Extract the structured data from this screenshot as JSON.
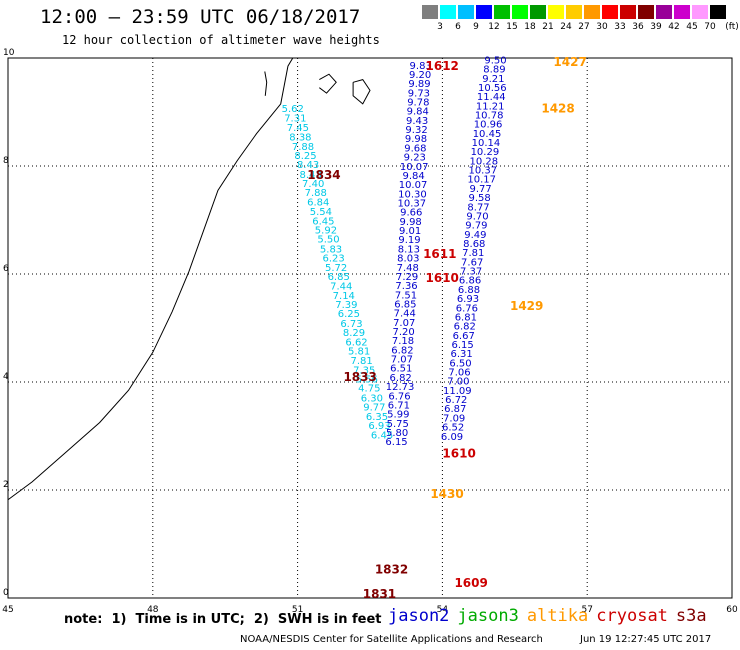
{
  "header": {
    "title": "12:00 – 23:59 UTC 06/18/2017",
    "subtitle": "12 hour collection of altimeter wave heights"
  },
  "legend": {
    "units": "(ft)",
    "bins": [
      {
        "label": "3",
        "color": "#7f7f7f"
      },
      {
        "label": "6",
        "color": "#00ffff"
      },
      {
        "label": "9",
        "color": "#00bfff"
      },
      {
        "label": "12",
        "color": "#0000ff"
      },
      {
        "label": "15",
        "color": "#00bf00"
      },
      {
        "label": "18",
        "color": "#00ff00"
      },
      {
        "label": "21",
        "color": "#009900"
      },
      {
        "label": "24",
        "color": "#ffff00"
      },
      {
        "label": "27",
        "color": "#ffcc00"
      },
      {
        "label": "30",
        "color": "#ff9900"
      },
      {
        "label": "33",
        "color": "#ff0000"
      },
      {
        "label": "36",
        "color": "#cc0000"
      },
      {
        "label": "39",
        "color": "#800000"
      },
      {
        "label": "42",
        "color": "#990099"
      },
      {
        "label": "45",
        "color": "#cc00cc"
      },
      {
        "label": "70",
        "color": "#ff99ff"
      },
      {
        "label": "",
        "color": "#000000"
      }
    ]
  },
  "map": {
    "lon_range": [
      45,
      60
    ],
    "lat_range": [
      0,
      10
    ],
    "lon_ticks": [
      "45",
      "48",
      "51",
      "54",
      "57",
      "60"
    ],
    "lat_ticks": [
      "0",
      "2",
      "4",
      "6",
      "8",
      "10"
    ],
    "colors": {
      "jason2": "#0000cc",
      "jason3": "#00aa00",
      "altika": "#ff9900",
      "cryosat": "#cc0000",
      "s3a": "#800000",
      "low": "#00c8e6",
      "mid": "#0000cc"
    },
    "tracks": [
      {
        "name": "track-1834",
        "color_key": "low",
        "values": [
          "5.62",
          "7.31",
          "7.45",
          "8.38",
          "7.88",
          "8.25",
          "8.43",
          "8.43",
          "7.40",
          "7.88",
          "6.84",
          "5.54",
          "6.45",
          "5.92",
          "5.50",
          "5.83",
          "6.23",
          "5.72",
          "6.85",
          "7.44",
          "7.14",
          "7.39",
          "6.25",
          "6.73",
          "8.29",
          "6.62",
          "5.81",
          "7.81",
          "7.35",
          "5.56",
          "4.75",
          "6.30",
          "9.77",
          "6.35",
          "6.93",
          "6.45"
        ],
        "lats": [
          9.0,
          8.82,
          8.65,
          8.47,
          8.3,
          8.13,
          7.96,
          7.78,
          7.61,
          7.44,
          7.27,
          7.09,
          6.92,
          6.75,
          6.58,
          6.4,
          6.23,
          6.06,
          5.89,
          5.71,
          5.54,
          5.37,
          5.2,
          5.02,
          4.85,
          4.68,
          4.51,
          4.33,
          4.16,
          3.99,
          3.82,
          3.64,
          3.47,
          3.3,
          3.13,
          2.95
        ],
        "lon_start": 50.9,
        "lon_end": 52.75
      },
      {
        "name": "track-1612",
        "color_key": "mid",
        "values": [
          "9.83",
          "9.20",
          "9.89",
          "9.73",
          "9.78",
          "9.84",
          "9.43",
          "9.32",
          "9.98",
          "9.68",
          "9.23",
          "10.07",
          "9.84",
          "10.07",
          "10.30",
          "10.37",
          "9.66",
          "9.98",
          "9.01",
          "9.19",
          "8.13",
          "8.03",
          "7.48",
          "7.29",
          "7.36",
          "7.51",
          "6.85",
          "7.44",
          "7.07",
          "7.20",
          "7.18",
          "6.82",
          "7.07",
          "6.51",
          "6.82",
          "12.73",
          "6.76",
          "6.71",
          "5.99",
          "5.75",
          "5.80",
          "6.15"
        ],
        "lats": [
          9.8,
          9.63,
          9.46,
          9.29,
          9.12,
          8.95,
          8.78,
          8.61,
          8.44,
          8.27,
          8.1,
          7.93,
          7.76,
          7.59,
          7.42,
          7.25,
          7.08,
          6.91,
          6.74,
          6.57,
          6.4,
          6.23,
          6.06,
          5.89,
          5.72,
          5.55,
          5.38,
          5.21,
          5.04,
          4.87,
          4.7,
          4.53,
          4.36,
          4.19,
          4.02,
          3.85,
          3.68,
          3.51,
          3.34,
          3.17,
          3.0,
          2.83
        ],
        "lon_start": 53.55,
        "lon_end": 53.05
      },
      {
        "name": "track-1427",
        "color_key": "mid",
        "values": [
          "9.50",
          "8.89",
          "9.21",
          "10.56",
          "11.44",
          "11.21",
          "10.78",
          "10.96",
          "10.45",
          "10.14",
          "10.29",
          "10.28",
          "10.37",
          "10.17",
          "9.77",
          "9.58",
          "8.77",
          "9.70",
          "9.79",
          "9.49",
          "8.68",
          "7.81",
          "7.67",
          "7.37",
          "6.86",
          "6.88",
          "6.93",
          "6.76",
          "6.81",
          "6.82",
          "6.67",
          "6.15",
          "6.31",
          "6.50",
          "7.06",
          "7.00",
          "11.09",
          "6.72",
          "6.87",
          "7.09",
          "6.52",
          "6.09"
        ],
        "lats": [
          9.9,
          9.73,
          9.56,
          9.39,
          9.22,
          9.05,
          8.88,
          8.71,
          8.54,
          8.37,
          8.2,
          8.03,
          7.86,
          7.69,
          7.52,
          7.35,
          7.18,
          7.01,
          6.84,
          6.67,
          6.5,
          6.33,
          6.16,
          5.99,
          5.82,
          5.65,
          5.48,
          5.31,
          5.14,
          4.97,
          4.8,
          4.63,
          4.46,
          4.29,
          4.12,
          3.95,
          3.78,
          3.61,
          3.44,
          3.27,
          3.1,
          2.93
        ],
        "lon_start": 55.1,
        "lon_end": 54.2
      }
    ],
    "pass_labels": [
      {
        "text": "1612",
        "color_key": "cryosat",
        "lon": 53.65,
        "lat": 9.78
      },
      {
        "text": "1427",
        "color_key": "altika",
        "lon": 56.3,
        "lat": 9.85
      },
      {
        "text": "1428",
        "color_key": "altika",
        "lon": 56.05,
        "lat": 8.99
      },
      {
        "text": "1834",
        "color_key": "s3a",
        "lon": 51.2,
        "lat": 7.76
      },
      {
        "text": "1611",
        "color_key": "cryosat",
        "lon": 53.6,
        "lat": 6.3
      },
      {
        "text": "1610",
        "color_key": "cryosat",
        "lon": 53.65,
        "lat": 5.85
      },
      {
        "text": "1429",
        "color_key": "altika",
        "lon": 55.4,
        "lat": 5.33
      },
      {
        "text": "1833",
        "color_key": "s3a",
        "lon": 51.95,
        "lat": 4.02
      },
      {
        "text": "1610",
        "color_key": "cryosat",
        "lon": 54.0,
        "lat": 2.6
      },
      {
        "text": "1430",
        "color_key": "altika",
        "lon": 53.75,
        "lat": 1.85
      },
      {
        "text": "1832",
        "color_key": "s3a",
        "lon": 52.6,
        "lat": 0.45
      },
      {
        "text": "1609",
        "color_key": "cryosat",
        "lon": 54.25,
        "lat": 0.2
      },
      {
        "text": "1831",
        "color_key": "s3a",
        "lon": 52.35,
        "lat": 0.0
      }
    ]
  },
  "notes": {
    "text": "note:  1)  Time is in UTC;  2)  SWH is in feet",
    "satellites": [
      {
        "name": "jason2",
        "color_key": "jason2"
      },
      {
        "name": "jason3",
        "color_key": "jason3"
      },
      {
        "name": "altika",
        "color_key": "altika"
      },
      {
        "name": "cryosat",
        "color_key": "cryosat"
      },
      {
        "name": "s3a",
        "color_key": "s3a"
      }
    ],
    "footer": "NOAA/NESDIS Center for Satellite Applications and Research",
    "timestamp": "Jun 19 12:27:45 UTC 2017"
  }
}
